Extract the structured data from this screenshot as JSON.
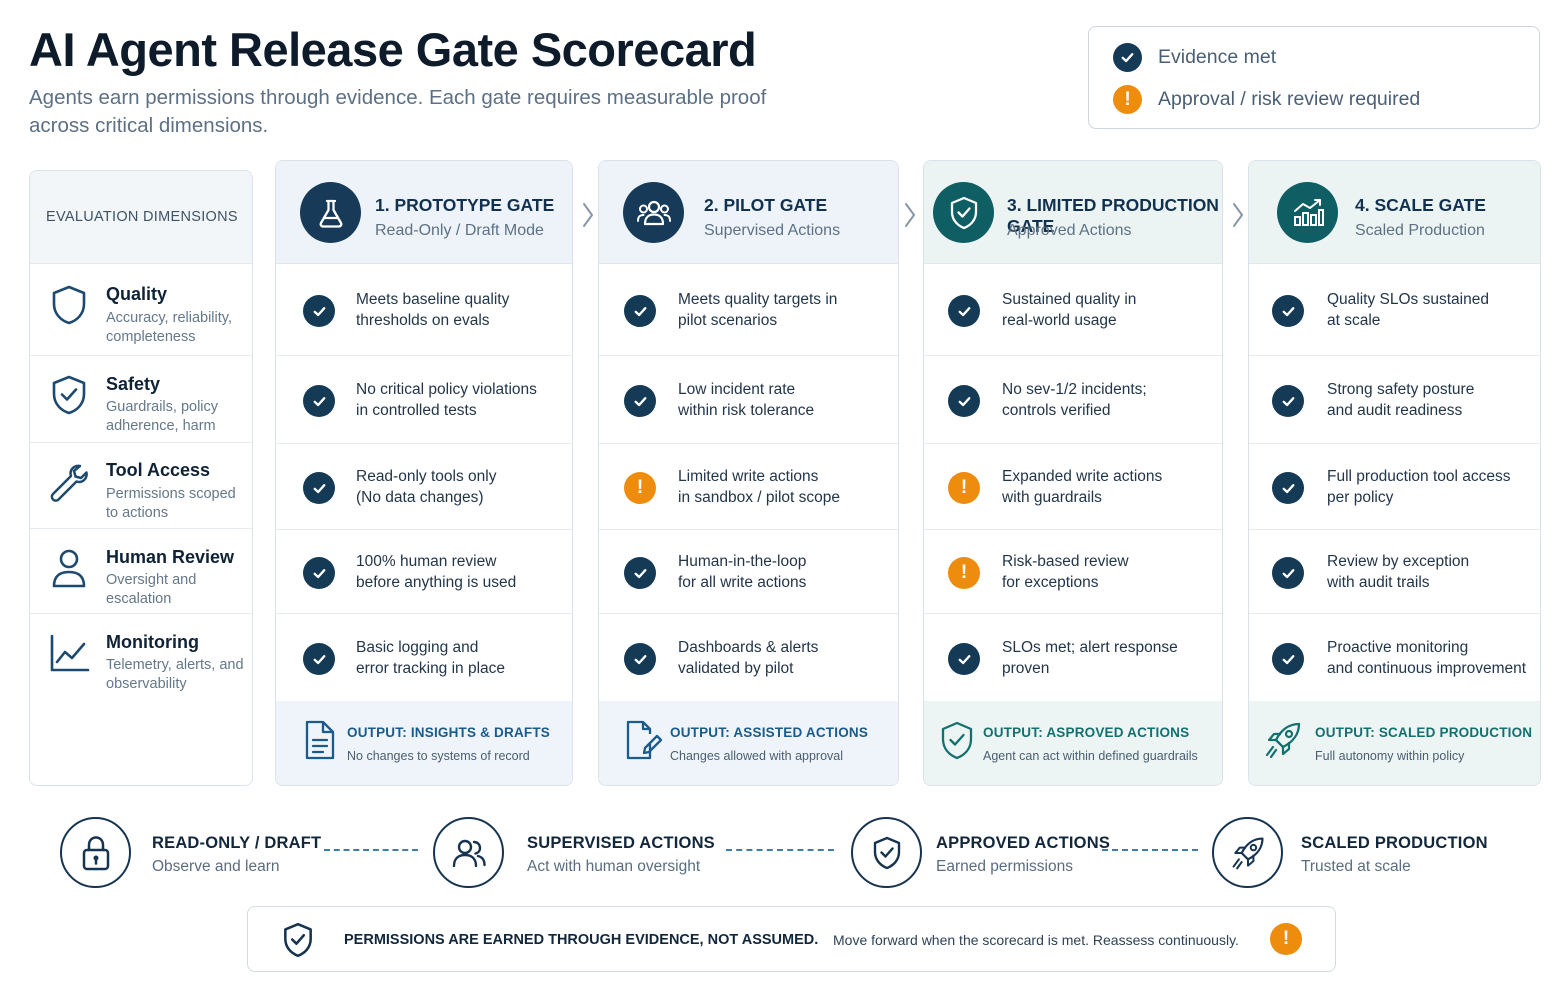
{
  "header": {
    "title": "AI Agent Release Gate Scorecard",
    "subtitle": "Agents earn permissions through evidence. Each gate requires measurable proof across critical dimensions."
  },
  "legend": {
    "met_label": "Evidence met",
    "review_label": "Approval / risk review required"
  },
  "dimensions": {
    "header": "EVALUATION DIMENSIONS",
    "items": [
      {
        "name": "Quality",
        "desc": "Accuracy, reliability, completeness",
        "icon": "shield-outline-icon"
      },
      {
        "name": "Safety",
        "desc": "Guardrails, policy adherence, harm",
        "icon": "shield-check-icon"
      },
      {
        "name": "Tool Access",
        "desc": "Permissions scoped to actions",
        "icon": "wrench-icon"
      },
      {
        "name": "Human Review",
        "desc": "Oversight and escalation",
        "icon": "person-icon"
      },
      {
        "name": "Monitoring",
        "desc": "Telemetry, alerts, and observability",
        "icon": "line-chart-icon"
      }
    ]
  },
  "gates": [
    {
      "title": "1. PROTOTYPE GATE",
      "subtitle": "Read-Only / Draft Mode",
      "icon": "flask-icon",
      "cells": [
        {
          "status": "met",
          "l1": "Meets baseline quality",
          "l2": "thresholds on evals"
        },
        {
          "status": "met",
          "l1": "No critical policy violations",
          "l2": "in controlled tests"
        },
        {
          "status": "met",
          "l1": "Read-only tools only",
          "l2": "(No data changes)"
        },
        {
          "status": "met",
          "l1": "100% human review",
          "l2": "before anything is used"
        },
        {
          "status": "met",
          "l1": "Basic logging and",
          "l2": "error tracking in place"
        }
      ],
      "output_title": "OUTPUT: INSIGHTS & DRAFTS",
      "output_sub": "No changes to systems of record",
      "output_icon": "document-icon"
    },
    {
      "title": "2. PILOT GATE",
      "subtitle": "Supervised Actions",
      "icon": "team-icon",
      "cells": [
        {
          "status": "met",
          "l1": "Meets quality targets in",
          "l2": "pilot scenarios"
        },
        {
          "status": "met",
          "l1": "Low incident rate",
          "l2": "within risk tolerance"
        },
        {
          "status": "review",
          "l1": "Limited write actions",
          "l2": "in sandbox / pilot scope"
        },
        {
          "status": "met",
          "l1": "Human-in-the-loop",
          "l2": "for all write actions"
        },
        {
          "status": "met",
          "l1": "Dashboards & alerts",
          "l2": "validated by pilot"
        }
      ],
      "output_title": "OUTPUT: ASSISTED ACTIONS",
      "output_sub": "Changes allowed with approval",
      "output_icon": "document-edit-icon"
    },
    {
      "title": "3. LIMITED PRODUCTION GATE",
      "subtitle": "Approved Actions",
      "icon": "shield-check-icon",
      "cells": [
        {
          "status": "met",
          "l1": "Sustained quality in",
          "l2": "real-world usage"
        },
        {
          "status": "met",
          "l1": "No sev-1/2 incidents;",
          "l2": "controls verified"
        },
        {
          "status": "review",
          "l1": "Expanded write actions",
          "l2": "with guardrails"
        },
        {
          "status": "review",
          "l1": "Risk-based review",
          "l2": "for exceptions"
        },
        {
          "status": "met",
          "l1": "SLOs met; alert response",
          "l2": "proven"
        }
      ],
      "output_title": "OUTPUT: ASPROVED ACTIONS",
      "output_sub": "Agent can act within defined guardrails",
      "output_icon": "shield-check-icon"
    },
    {
      "title": "4. SCALE GATE",
      "subtitle": "Scaled Production",
      "icon": "growth-chart-icon",
      "cells": [
        {
          "status": "met",
          "l1": "Quality SLOs sustained",
          "l2": "at scale"
        },
        {
          "status": "met",
          "l1": "Strong safety posture",
          "l2": "and audit readiness"
        },
        {
          "status": "met",
          "l1": "Full production tool access",
          "l2": "per policy"
        },
        {
          "status": "met",
          "l1": "Review by exception",
          "l2": "with audit trails"
        },
        {
          "status": "met",
          "l1": "Proactive monitoring",
          "l2": "and continuous improvement"
        }
      ],
      "output_title": "OUTPUT: SCALED PRODUCTION",
      "output_sub": "Full autonomy within policy",
      "output_icon": "rocket-icon"
    }
  ],
  "stages": [
    {
      "title": "READ-ONLY / DRAFT",
      "sub": "Observe and learn",
      "icon": "lock-icon"
    },
    {
      "title": "SUPERVISED ACTIONS",
      "sub": "Act with human oversight",
      "icon": "team-icon"
    },
    {
      "title": "APPROVED ACTIONS",
      "sub": "Earned permissions",
      "icon": "shield-check-icon"
    },
    {
      "title": "SCALED PRODUCTION",
      "sub": "Trusted at scale",
      "icon": "rocket-icon"
    }
  ],
  "banner": {
    "title": "PERMISSIONS ARE EARNED THROUGH EVIDENCE, NOT ASSUMED.",
    "text": "Move forward when the scorecard is met. Reassess continuously."
  },
  "colors": {
    "navy": "#163a57",
    "teal": "#0e5e64",
    "warning": "#ee8c0e",
    "output_blue": "#1a5b8c",
    "output_teal": "#13706f"
  }
}
